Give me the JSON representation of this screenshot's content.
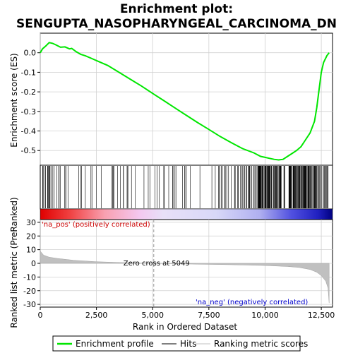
{
  "chart_data": {
    "type": "line",
    "title_line1": "Enrichment plot:",
    "title_line2": "SENGUPTA_NASOPHARYNGEAL_CARCINOMA_DN",
    "es_ylabel": "Enrichment score (ES)",
    "metric_ylabel": "Ranked list metric (PreRanked)",
    "xlabel": "Rank in Ordered Dataset",
    "xlim": [
      0,
      13000
    ],
    "es_ylim": [
      -0.575,
      0.1
    ],
    "metric_ylim": [
      -32,
      32
    ],
    "x_ticks": [
      "0",
      "2,500",
      "5,000",
      "7,500",
      "10,000",
      "12,500"
    ],
    "x_tick_values": [
      0,
      2500,
      5000,
      7500,
      10000,
      12500
    ],
    "es_ticks": [
      "0.0",
      "-0.1",
      "-0.2",
      "-0.3",
      "-0.4",
      "-0.5"
    ],
    "es_tick_values": [
      0.0,
      -0.1,
      -0.2,
      -0.3,
      -0.4,
      -0.5
    ],
    "metric_ticks": [
      "30",
      "20",
      "10",
      "0",
      "-10",
      "-20",
      "-30"
    ],
    "metric_tick_values": [
      30,
      20,
      10,
      0,
      -10,
      -20,
      -30
    ],
    "es_curve": [
      [
        0,
        0.0
      ],
      [
        100,
        0.02
      ],
      [
        250,
        0.035
      ],
      [
        400,
        0.052
      ],
      [
        550,
        0.048
      ],
      [
        700,
        0.04
      ],
      [
        900,
        0.028
      ],
      [
        1100,
        0.03
      ],
      [
        1300,
        0.02
      ],
      [
        1400,
        0.022
      ],
      [
        1600,
        0.005
      ],
      [
        1800,
        -0.008
      ],
      [
        2000,
        -0.015
      ],
      [
        2300,
        -0.03
      ],
      [
        2600,
        -0.045
      ],
      [
        3000,
        -0.065
      ],
      [
        3500,
        -0.1
      ],
      [
        4000,
        -0.135
      ],
      [
        4500,
        -0.17
      ],
      [
        5000,
        -0.208
      ],
      [
        5500,
        -0.245
      ],
      [
        6000,
        -0.283
      ],
      [
        6500,
        -0.32
      ],
      [
        7000,
        -0.357
      ],
      [
        7500,
        -0.392
      ],
      [
        8000,
        -0.428
      ],
      [
        8500,
        -0.46
      ],
      [
        9000,
        -0.49
      ],
      [
        9500,
        -0.512
      ],
      [
        9800,
        -0.53
      ],
      [
        10000,
        -0.535
      ],
      [
        10200,
        -0.54
      ],
      [
        10400,
        -0.545
      ],
      [
        10600,
        -0.548
      ],
      [
        10800,
        -0.545
      ],
      [
        11000,
        -0.53
      ],
      [
        11200,
        -0.515
      ],
      [
        11400,
        -0.5
      ],
      [
        11600,
        -0.48
      ],
      [
        11800,
        -0.445
      ],
      [
        12000,
        -0.41
      ],
      [
        12200,
        -0.35
      ],
      [
        12300,
        -0.28
      ],
      [
        12400,
        -0.19
      ],
      [
        12500,
        -0.1
      ],
      [
        12600,
        -0.05
      ],
      [
        12750,
        -0.015
      ],
      [
        12850,
        0.0
      ]
    ],
    "metric_curve": [
      [
        0,
        9
      ],
      [
        150,
        6
      ],
      [
        400,
        4.5
      ],
      [
        800,
        3.5
      ],
      [
        1500,
        2.2
      ],
      [
        2500,
        1.2
      ],
      [
        3500,
        0.6
      ],
      [
        4500,
        0.2
      ],
      [
        5049,
        0
      ],
      [
        6000,
        -0.3
      ],
      [
        7000,
        -0.6
      ],
      [
        8000,
        -0.9
      ],
      [
        9000,
        -1.2
      ],
      [
        10000,
        -1.6
      ],
      [
        11000,
        -2.3
      ],
      [
        11500,
        -3.0
      ],
      [
        12000,
        -4.5
      ],
      [
        12300,
        -6.5
      ],
      [
        12500,
        -9
      ],
      [
        12700,
        -13
      ],
      [
        12800,
        -18
      ],
      [
        12850,
        -29
      ]
    ],
    "zero_cross_rank": 5049,
    "annotations": {
      "pos": "'na_pos' (positively correlated)",
      "neg": "'na_neg' (negatively correlated)",
      "zero": "Zero cross at 5049"
    },
    "legend": {
      "position": "bottom",
      "items": [
        "Enrichment profile",
        "Hits",
        "Ranking metric scores"
      ]
    },
    "colors": {
      "es_line": "#00e600",
      "hits": "#000000",
      "metric_fill": "#c0c0c0",
      "pos_text": "#cc0000",
      "neg_text": "#0000cc",
      "grid": "#d0d0d0"
    }
  }
}
